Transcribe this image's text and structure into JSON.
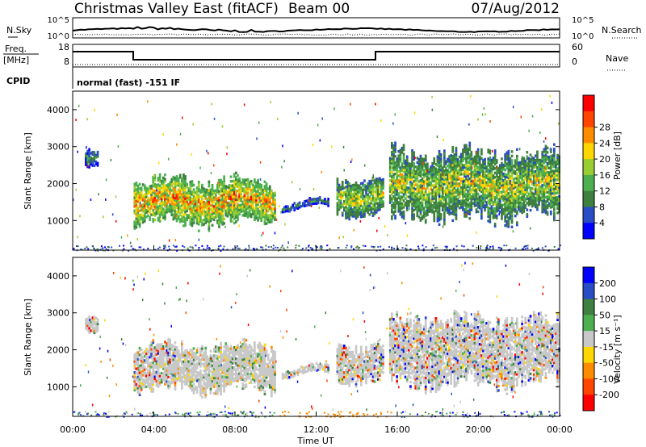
{
  "header": {
    "station": "Christmas Valley East (fitACF)",
    "beam": "Beam 00",
    "date": "07/Aug/2012"
  },
  "strip_labels": {
    "nsky": "N.Sky",
    "nsearch": "N.Search",
    "freq": "Freq.",
    "freq_unit": "[MHz]",
    "nave": "Nave",
    "cpid": "CPID",
    "cpid_text": "normal (fast) -151 IF",
    "noise_ticks": [
      "10^5",
      "10^0"
    ],
    "freq_ticks": [
      "18",
      "8"
    ],
    "nave_ticks": [
      "60",
      "0"
    ]
  },
  "colors": {
    "power": [
      "#0000ff",
      "#2a4cc4",
      "#3f7f3f",
      "#4caf50",
      "#9acd32",
      "#ffd700",
      "#ff8c00",
      "#ff4500",
      "#ff0000"
    ],
    "velocity": [
      "#0000ff",
      "#2a4cc4",
      "#3f7f3f",
      "#4caf50",
      "#c8c8c8",
      "#ffd700",
      "#ff8c00",
      "#ff4500",
      "#ff0000"
    ]
  },
  "chart_data": [
    {
      "type": "heatmap",
      "name": "power",
      "xlabel": "",
      "ylabel": "Slant Range [km]",
      "xlim": [
        "00:00",
        "24:00"
      ],
      "ylim": [
        200,
        4500
      ],
      "yticks": [
        1000,
        2000,
        3000,
        4000
      ],
      "colorbar_label": "Power [dB]",
      "colorbar_ticks": [
        4,
        8,
        12,
        16,
        20,
        24,
        28
      ],
      "features": [
        {
          "start_h": 0.6,
          "end_h": 1.3,
          "range_km": [
            2300,
            2800
          ],
          "level": "low"
        },
        {
          "start_h": 3.0,
          "end_h": 10.0,
          "range_km": [
            800,
            2200
          ],
          "level": "high"
        },
        {
          "start_h": 10.3,
          "end_h": 12.6,
          "range_km": [
            1300,
            1500
          ],
          "level": "low"
        },
        {
          "start_h": 13.0,
          "end_h": 15.3,
          "range_km": [
            1100,
            2200
          ],
          "level": "medium"
        },
        {
          "start_h": 15.6,
          "end_h": 24.0,
          "range_km": [
            900,
            3000
          ],
          "level": "medium"
        }
      ]
    },
    {
      "type": "heatmap",
      "name": "velocity",
      "xlabel": "Time UT",
      "ylabel": "Slant Range [km]",
      "xlim": [
        "00:00",
        "24:00"
      ],
      "xticks": [
        "00:00",
        "04:00",
        "08:00",
        "12:00",
        "16:00",
        "20:00",
        "00:00"
      ],
      "ylim": [
        200,
        4500
      ],
      "yticks": [
        1000,
        2000,
        3000,
        4000
      ],
      "colorbar_label": "Velocity [m s⁻¹]",
      "colorbar_ticks": [
        200,
        100,
        50,
        15,
        -15,
        -50,
        -100,
        -200
      ]
    }
  ]
}
